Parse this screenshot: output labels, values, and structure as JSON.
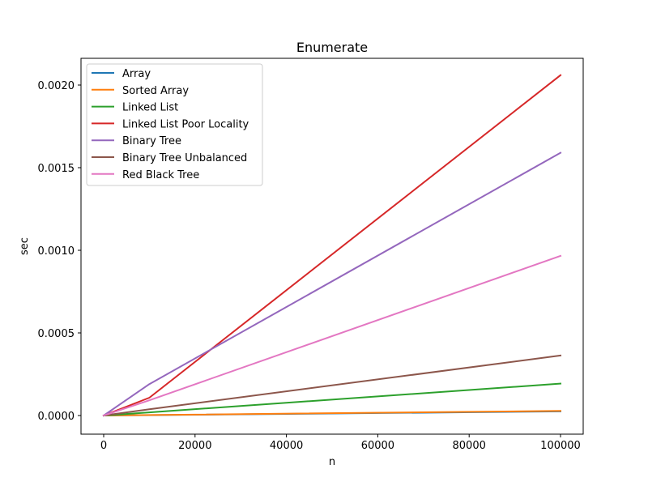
{
  "chart_data": {
    "type": "line",
    "title": "Enumerate",
    "xlabel": "n",
    "ylabel": "sec",
    "x": [
      0,
      10000,
      100000
    ],
    "xlim": [
      -5000,
      105000
    ],
    "ylim": [
      -0.000103,
      0.00216
    ],
    "xticks": [
      0,
      20000,
      40000,
      60000,
      80000,
      100000
    ],
    "xtick_labels": [
      "0",
      "20000",
      "40000",
      "60000",
      "80000",
      "100000"
    ],
    "yticks": [
      0.0,
      0.0005,
      0.001,
      0.0015,
      0.002
    ],
    "ytick_labels": [
      "0.0000",
      "0.0005",
      "0.0010",
      "0.0015",
      "0.0020"
    ],
    "grid": false,
    "legend_position": "upper left",
    "series": [
      {
        "name": "Array",
        "color": "#1f77b4",
        "values": [
          0.0,
          2.5e-06,
          2.5e-05
        ]
      },
      {
        "name": "Sorted Array",
        "color": "#ff7f0e",
        "values": [
          0.0,
          2.8e-06,
          2.8e-05
        ]
      },
      {
        "name": "Linked List",
        "color": "#2ca02c",
        "values": [
          0.0,
          1.9e-05,
          0.000193
        ]
      },
      {
        "name": "Linked List Poor Locality",
        "color": "#d62728",
        "values": [
          0.0,
          0.000108,
          0.00206
        ]
      },
      {
        "name": "Binary Tree",
        "color": "#9467bd",
        "values": [
          0.0,
          0.00019,
          0.00159
        ]
      },
      {
        "name": "Binary Tree Unbalanced",
        "color": "#8c564b",
        "values": [
          0.0,
          3.8e-05,
          0.000363
        ]
      },
      {
        "name": "Red Black Tree",
        "color": "#e377c2",
        "values": [
          0.0,
          9.2e-05,
          0.000966
        ]
      }
    ]
  }
}
